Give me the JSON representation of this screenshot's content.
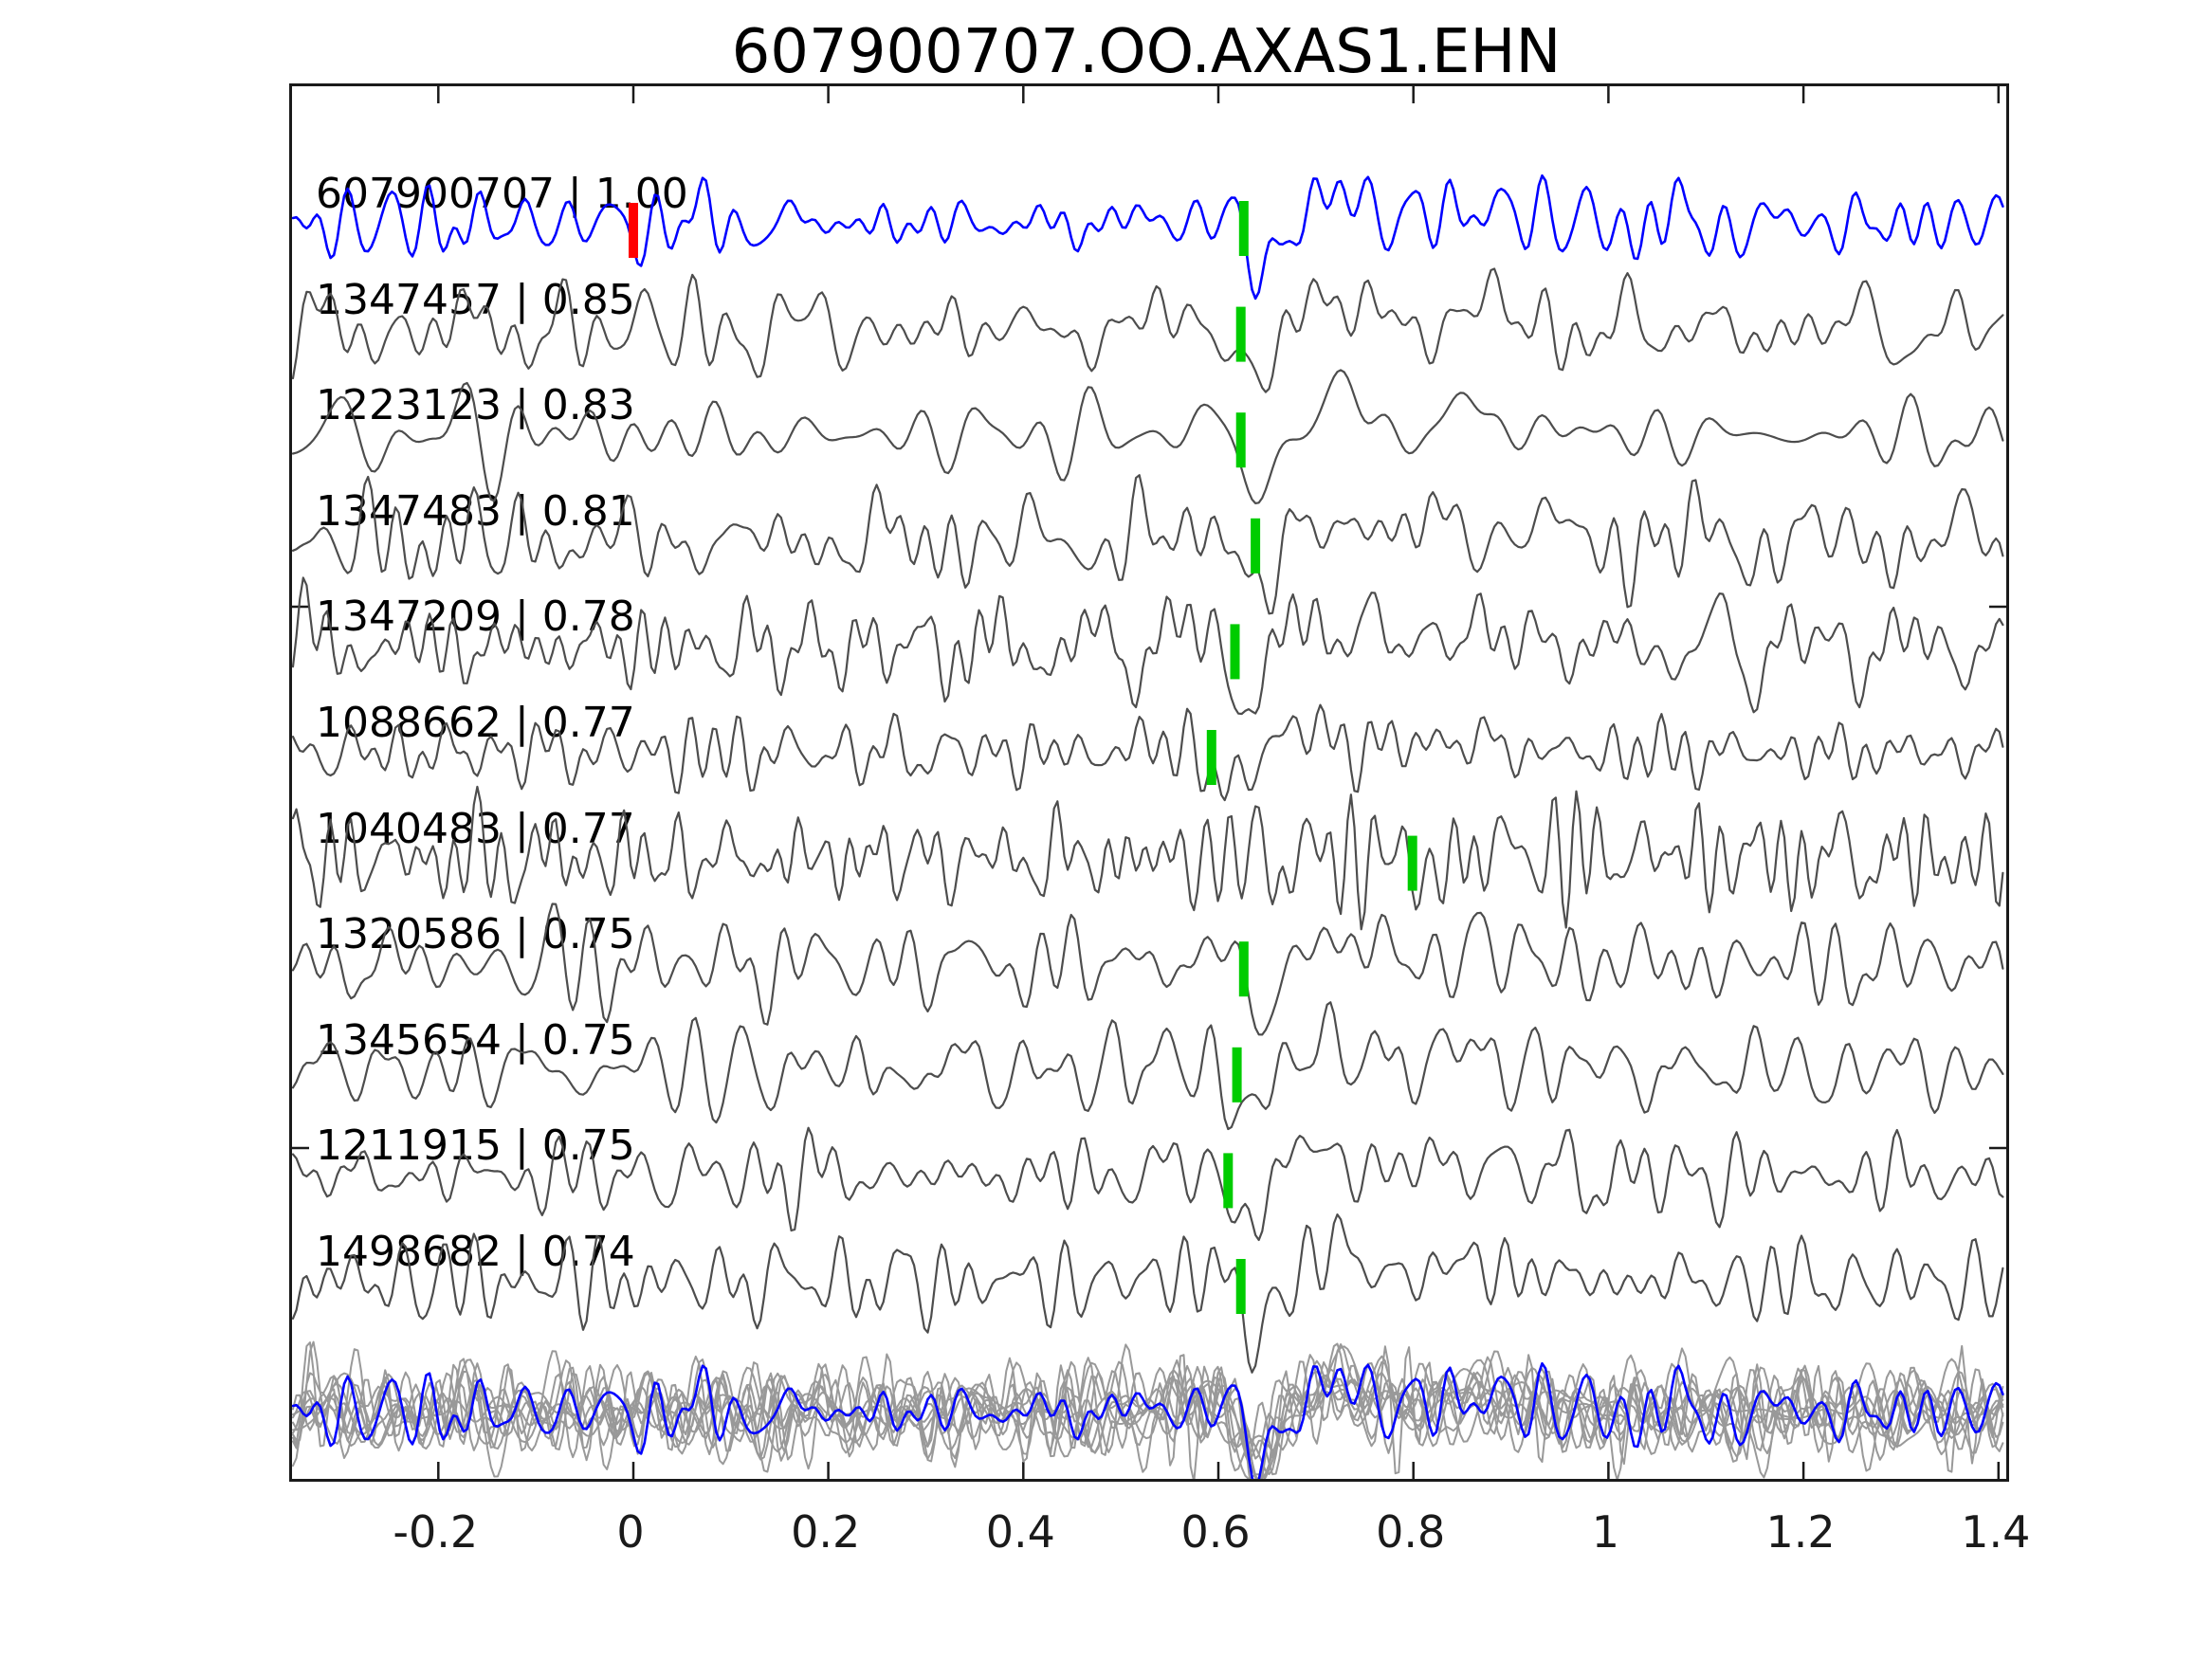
{
  "title": "607900707.OO.AXAS1.EHN",
  "colors": {
    "template_line": "#0000ff",
    "trace_line": "#4d4d4d",
    "overlay_line": "#999999",
    "pick_marker": "#00cc00",
    "origin_marker": "#ff0000",
    "spine": "#1a1a1a",
    "tick": "#1a1a1a",
    "text": "#000000"
  },
  "axis": {
    "x_ticks": [
      {
        "value": -0.2,
        "label": "-0.2"
      },
      {
        "value": 0,
        "label": "0"
      },
      {
        "value": 0.2,
        "label": "0.2"
      },
      {
        "value": 0.4,
        "label": "0.4"
      },
      {
        "value": 0.6,
        "label": "0.6"
      },
      {
        "value": 0.8,
        "label": "0.8"
      },
      {
        "value": 1,
        "label": "1"
      },
      {
        "value": 1.2,
        "label": "1.2"
      },
      {
        "value": 1.4,
        "label": "1.4"
      }
    ],
    "y_tick_positions": [
      637,
      1208
    ]
  },
  "chart_data": {
    "type": "line",
    "title": "607900707.OO.AXAS1.EHN",
    "x_axis": {
      "range": [
        -0.35,
        1.408
      ],
      "ticks": [
        -0.2,
        0,
        0.2,
        0.4,
        0.6,
        0.8,
        1,
        1.2,
        1.4
      ]
    },
    "legend": "none",
    "grid": false,
    "description_of_rows": "11 cross-correlated seismic waveforms stacked top to bottom (template first in blue), green bar = pick time, red bar = template origin time; bottom row overlays all traces aligned (gray) with template in blue",
    "align_x": 0.626,
    "traces": [
      {
        "id": "607900707",
        "cc": "1.00",
        "label": "607900707 | 1.00",
        "is_template": true,
        "pick_x": 0.626,
        "origin_marker_x": 0.0,
        "render": {
          "seed": 11,
          "amp": 22,
          "dip": 55,
          "fscale": 1.0
        }
      },
      {
        "id": "1347457",
        "cc": "0.85",
        "label": "1347457 | 0.85",
        "is_template": false,
        "pick_x": 0.623,
        "render": {
          "seed": 23,
          "amp": 24,
          "dip": 62,
          "fscale": 0.9
        }
      },
      {
        "id": "1223123",
        "cc": "0.83",
        "label": "1223123 | 0.83",
        "is_template": false,
        "pick_x": 0.623,
        "render": {
          "seed": 37,
          "amp": 22,
          "dip": 70,
          "fscale": 0.6
        }
      },
      {
        "id": "1347483",
        "cc": "0.81",
        "label": "1347483 | 0.81",
        "is_template": false,
        "pick_x": 0.638,
        "render": {
          "seed": 41,
          "amp": 32,
          "dip": 58,
          "fscale": 1.0
        }
      },
      {
        "id": "1347209",
        "cc": "0.78",
        "label": "1347209 | 0.78",
        "is_template": false,
        "pick_x": 0.617,
        "render": {
          "seed": 53,
          "amp": 30,
          "dip": 55,
          "fscale": 1.1
        }
      },
      {
        "id": "1088662",
        "cc": "0.77",
        "label": "1088662 | 0.77",
        "is_template": false,
        "pick_x": 0.593,
        "render": {
          "seed": 67,
          "amp": 20,
          "dip": 45,
          "fscale": 1.0
        }
      },
      {
        "id": "1040483",
        "cc": "0.77",
        "label": "1040483 | 0.77",
        "is_template": false,
        "pick_x": 0.799,
        "render": {
          "seed": 71,
          "amp": 36,
          "dip": 18,
          "fscale": 1.5
        }
      },
      {
        "id": "1320586",
        "cc": "0.75",
        "label": "1320586 | 0.75",
        "is_template": false,
        "pick_x": 0.626,
        "render": {
          "seed": 83,
          "amp": 30,
          "dip": 52,
          "fscale": 0.85
        }
      },
      {
        "id": "1345654",
        "cc": "0.75",
        "label": "1345654 | 0.75",
        "is_template": false,
        "pick_x": 0.619,
        "render": {
          "seed": 97,
          "amp": 27,
          "dip": 58,
          "fscale": 1.0
        }
      },
      {
        "id": "1211915",
        "cc": "0.75",
        "label": "1211915 | 0.75",
        "is_template": false,
        "pick_x": 0.61,
        "render": {
          "seed": 103,
          "amp": 28,
          "dip": 50,
          "fscale": 1.0
        }
      },
      {
        "id": "1498682",
        "cc": "0.74",
        "label": "1498682 | 0.74",
        "is_template": false,
        "pick_x": 0.623,
        "render": {
          "seed": 113,
          "amp": 26,
          "dip": 62,
          "fscale": 0.95
        }
      }
    ]
  }
}
